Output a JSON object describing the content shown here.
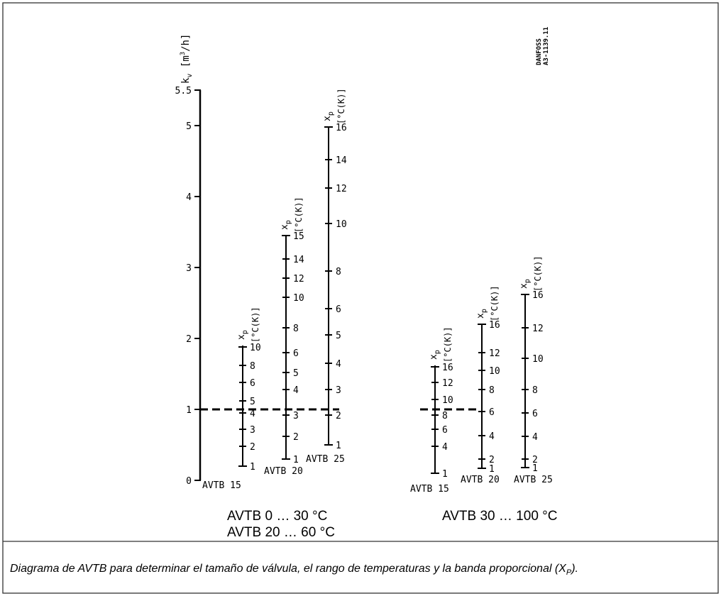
{
  "frame": {
    "border_color": "#333333"
  },
  "kv_axis": {
    "symbol": "k",
    "subscript": "v",
    "unit": "[m",
    "unit_sup": "3",
    "unit_tail": "/h]",
    "min": 0,
    "max": 5.5,
    "ticks": [
      "0",
      "1",
      "2",
      "3",
      "4",
      "5",
      "5.5"
    ],
    "tick_values": [
      0,
      1,
      2,
      3,
      4,
      5,
      5.5
    ]
  },
  "reference_line": {
    "kv": 1
  },
  "xp_symbol": "x",
  "xp_subscript": "p",
  "xp_unit": "[°C(K)]",
  "scales": [
    {
      "model": "AVTB   15",
      "group": "low",
      "kv_bottom": 0.2,
      "kv_top": 1.9,
      "marks": [
        {
          "xp": "1",
          "kv": 0.2
        },
        {
          "xp": "2",
          "kv": 0.48
        },
        {
          "xp": "3",
          "kv": 0.72
        },
        {
          "xp": "4",
          "kv": 0.95
        },
        {
          "xp": "5",
          "kv": 1.12
        },
        {
          "xp": "6",
          "kv": 1.38
        },
        {
          "xp": "8",
          "kv": 1.62
        },
        {
          "xp": "10",
          "kv": 1.88
        }
      ]
    },
    {
      "model": "AVTB   20",
      "group": "low",
      "kv_bottom": 0.3,
      "kv_top": 3.45,
      "marks": [
        {
          "xp": "1",
          "kv": 0.3
        },
        {
          "xp": "2",
          "kv": 0.62
        },
        {
          "xp": "3",
          "kv": 0.92
        },
        {
          "xp": "4",
          "kv": 1.28
        },
        {
          "xp": "5",
          "kv": 1.52
        },
        {
          "xp": "6",
          "kv": 1.8
        },
        {
          "xp": "8",
          "kv": 2.15
        },
        {
          "xp": "10",
          "kv": 2.58
        },
        {
          "xp": "12",
          "kv": 2.85
        },
        {
          "xp": "14",
          "kv": 3.12
        },
        {
          "xp": "15",
          "kv": 3.45
        }
      ]
    },
    {
      "model": "AVTB   25",
      "group": "low",
      "kv_bottom": 0.5,
      "kv_top": 4.98,
      "marks": [
        {
          "xp": "1",
          "kv": 0.5
        },
        {
          "xp": "2",
          "kv": 0.92
        },
        {
          "xp": "3",
          "kv": 1.28
        },
        {
          "xp": "4",
          "kv": 1.65
        },
        {
          "xp": "5",
          "kv": 2.05
        },
        {
          "xp": "6",
          "kv": 2.42
        },
        {
          "xp": "8",
          "kv": 2.95
        },
        {
          "xp": "10",
          "kv": 3.62
        },
        {
          "xp": "12",
          "kv": 4.12
        },
        {
          "xp": "14",
          "kv": 4.52
        },
        {
          "xp": "16",
          "kv": 4.98
        }
      ]
    },
    {
      "model": "AVTB   15",
      "group": "high",
      "kv_bottom": 0.1,
      "kv_top": 1.62,
      "marks": [
        {
          "xp": "1",
          "kv": 0.1
        },
        {
          "xp": "4",
          "kv": 0.48
        },
        {
          "xp": "6",
          "kv": 0.72
        },
        {
          "xp": "8",
          "kv": 0.92
        },
        {
          "xp": "10",
          "kv": 1.14
        },
        {
          "xp": "12",
          "kv": 1.38
        },
        {
          "xp": "16",
          "kv": 1.6
        }
      ]
    },
    {
      "model": "AVTB   20",
      "group": "high",
      "kv_bottom": 0.17,
      "kv_top": 2.2,
      "marks": [
        {
          "xp": "1",
          "kv": 0.17
        },
        {
          "xp": "2",
          "kv": 0.3
        },
        {
          "xp": "4",
          "kv": 0.63
        },
        {
          "xp": "6",
          "kv": 0.97
        },
        {
          "xp": "8",
          "kv": 1.28
        },
        {
          "xp": "10",
          "kv": 1.55
        },
        {
          "xp": "12",
          "kv": 1.8
        },
        {
          "xp": "16",
          "kv": 2.2
        }
      ]
    },
    {
      "model": "AVTB   25",
      "group": "high",
      "kv_bottom": 0.18,
      "kv_top": 2.62,
      "marks": [
        {
          "xp": "1",
          "kv": 0.18
        },
        {
          "xp": "2",
          "kv": 0.3
        },
        {
          "xp": "4",
          "kv": 0.62
        },
        {
          "xp": "6",
          "kv": 0.95
        },
        {
          "xp": "8",
          "kv": 1.28
        },
        {
          "xp": "10",
          "kv": 1.72
        },
        {
          "xp": "12",
          "kv": 2.15
        },
        {
          "xp": "16",
          "kv": 2.62
        }
      ]
    }
  ],
  "ranges": {
    "low_line1": "AVTB 0 … 30 °C",
    "low_line2": "AVTB 20 … 60 °C",
    "high": "AVTB 30 … 100 °C"
  },
  "maker_mark": {
    "line1": "DANFOSS",
    "line2": "A3-1139.11"
  },
  "caption_parts": {
    "main": "Diagrama de AVTB para determinar el tamaño de válvula, el rango de temperaturas y la banda proporcional (X",
    "sub": "P",
    "end": ")."
  }
}
